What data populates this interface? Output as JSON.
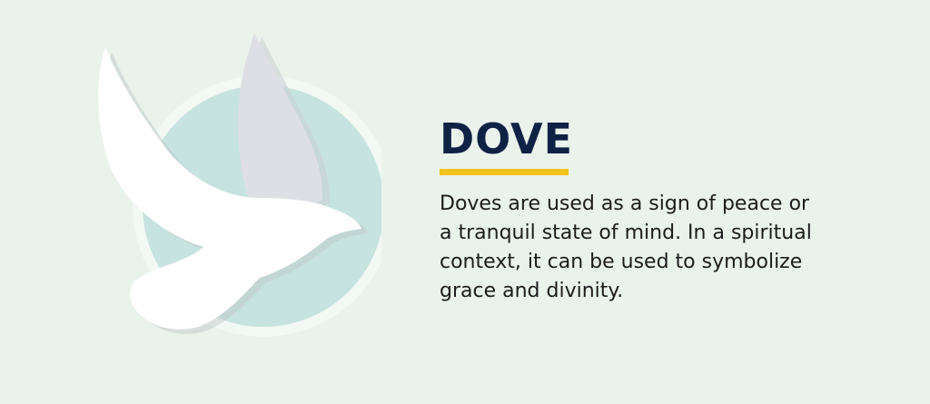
{
  "heading": {
    "title": "DOVE"
  },
  "description": {
    "lines": [
      "Doves are used as a sign of peace or",
      "a tranquil state of mind. In a spiritual",
      "context, it can be used to symbolize",
      "grace and divinity."
    ]
  },
  "colors": {
    "background": "#eaf2ec",
    "circle": "#c7e3df",
    "circle_ring": "#f2f8f4",
    "dove_body": "#ffffff",
    "dove_back_wing": "#dedfe4",
    "title": "#0f2144",
    "underline": "#f1c21b",
    "text": "#1c1c1c"
  },
  "icons": {
    "illustration": "dove-icon"
  }
}
